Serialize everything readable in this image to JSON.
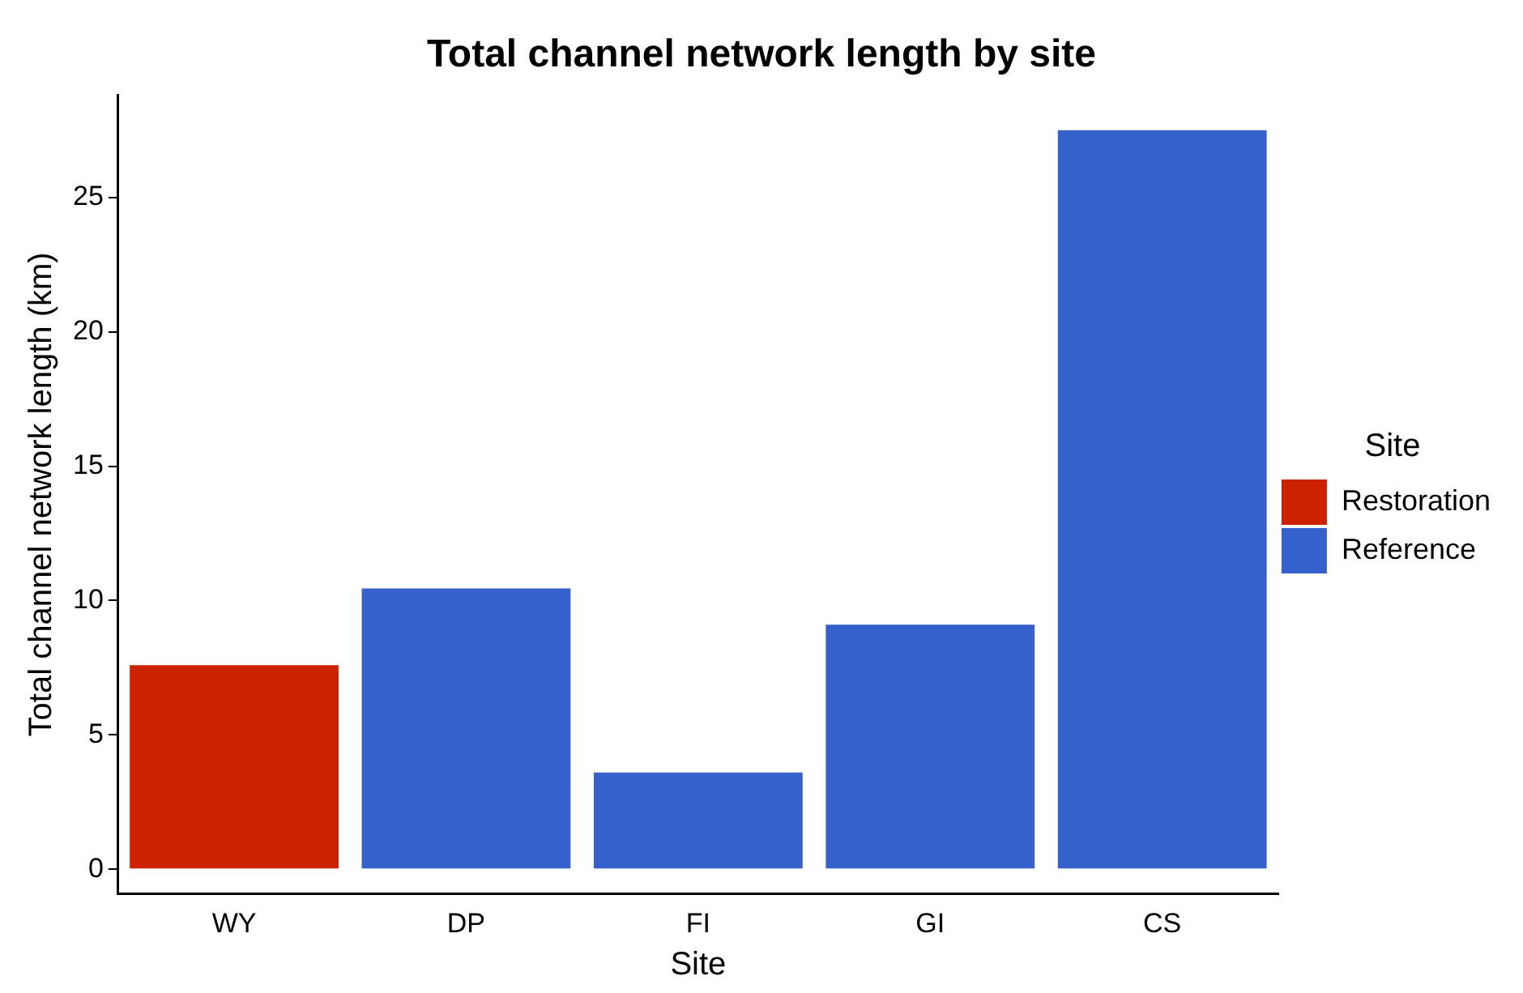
{
  "chart_data": {
    "type": "bar",
    "title": "Total channel network length by site",
    "xlabel": "Site",
    "ylabel": "Total channel network length (km)",
    "legend_title": "Site",
    "categories": [
      "WY",
      "DP",
      "FI",
      "GI",
      "CS"
    ],
    "series": [
      {
        "name": "Restoration",
        "color": "#cc2200",
        "values": [
          7.6,
          null,
          null,
          null,
          null
        ]
      },
      {
        "name": "Reference",
        "color": "#3461cc",
        "values": [
          null,
          10.45,
          3.6,
          9.1,
          27.5
        ]
      }
    ],
    "ylim": [
      -0.9,
      28.8
    ],
    "yticks": [
      0,
      5,
      10,
      15,
      20,
      25
    ],
    "grid": false,
    "legend": "right"
  }
}
